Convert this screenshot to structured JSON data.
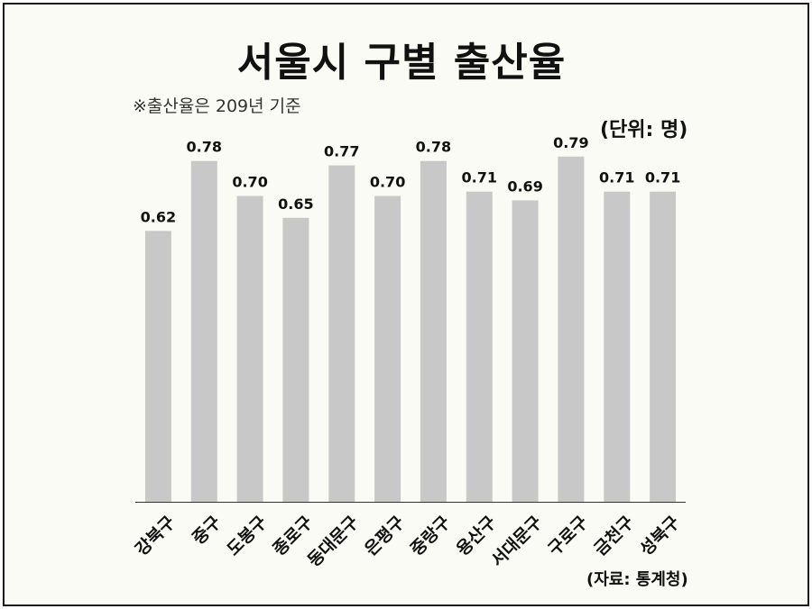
{
  "title": "서울시 구별 출산율",
  "note": "※출산율은 209년 기준",
  "unit": "(단위: 명)",
  "source": "(자료: 통계청)",
  "colors": {
    "bar": "#c8c8c8",
    "axis": "#333333",
    "background": "#fbfbf6"
  },
  "chart_data": {
    "type": "bar",
    "categories": [
      "강북구",
      "중구",
      "도봉구",
      "종로구",
      "동대문구",
      "은평구",
      "중랑구",
      "용산구",
      "서대문구",
      "구로구",
      "금천구",
      "성북구"
    ],
    "values": [
      0.62,
      0.78,
      0.7,
      0.65,
      0.77,
      0.7,
      0.78,
      0.71,
      0.69,
      0.79,
      0.71,
      0.71
    ],
    "value_labels": [
      "0.62",
      "0.78",
      "0.70",
      "0.65",
      "0.77",
      "0.70",
      "0.78",
      "0.71",
      "0.69",
      "0.79",
      "0.71",
      "0.71"
    ],
    "ylim": [
      0,
      0.8
    ],
    "grid": false,
    "legend": "none"
  }
}
